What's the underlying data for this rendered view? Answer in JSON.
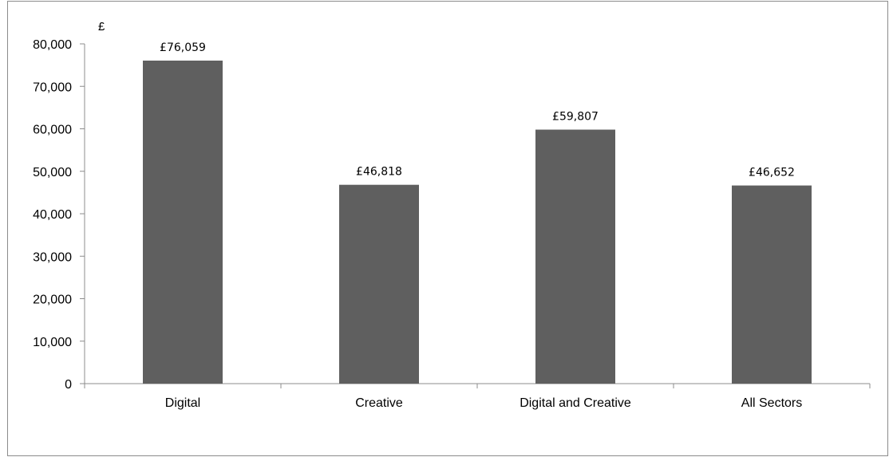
{
  "chart_data": {
    "type": "bar",
    "categories": [
      "Digital",
      "Creative",
      "Digital and Creative",
      "All Sectors"
    ],
    "values": [
      76059,
      46818,
      59807,
      46652
    ],
    "data_labels": [
      "£76,059",
      "£46,818",
      "£59,807",
      "£46,652"
    ],
    "y_unit_label": "£",
    "ylim": [
      0,
      80000
    ],
    "yticks": [
      0,
      10000,
      20000,
      30000,
      40000,
      50000,
      60000,
      70000,
      80000
    ],
    "ytick_labels": [
      "0",
      "10,000",
      "20,000",
      "30,000",
      "40,000",
      "50,000",
      "60,000",
      "70,000",
      "80,000"
    ],
    "grid": false,
    "legend": "none",
    "bar_color": "#5f5f5f",
    "axis_color": "#8c8c8c"
  }
}
